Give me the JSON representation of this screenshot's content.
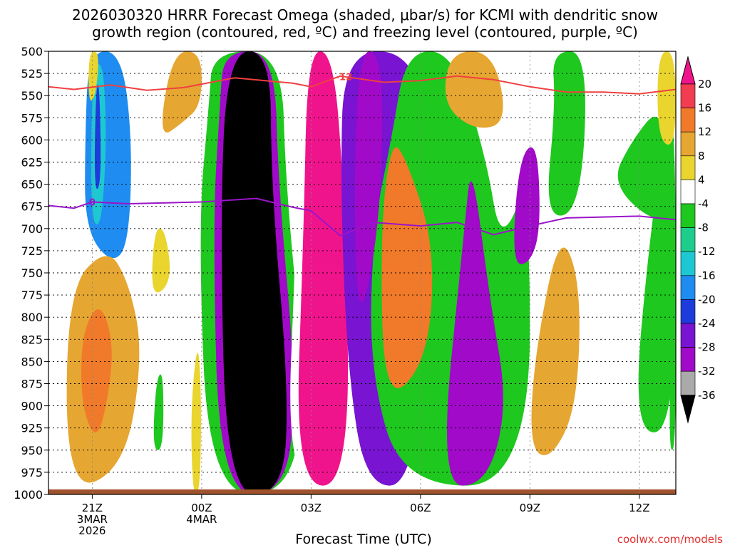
{
  "title_line1": "2026030320 HRRR Forecast Omega (shaded, μbar/s) for KCMI with dendritic snow",
  "title_line2": "growth region (contoured, red, ºC) and freezing level (contoured, purple, ºC)",
  "credit": "coolwx.com/models",
  "chart_data": {
    "type": "heatmap",
    "title": "2026030320 HRRR Forecast Omega (shaded, μbar/s) for KCMI with dendritic snow growth region (contoured, red, ºC) and freezing level (contoured, purple, ºC)",
    "xlabel": "Forecast Time (UTC)",
    "ylabel": "",
    "x_hours_range": [
      -0.2,
      17
    ],
    "y_pressure_range": [
      1000,
      500
    ],
    "grid": true,
    "x_ticks": [
      {
        "hour": 1,
        "lines": [
          "21Z",
          "3MAR",
          "2026"
        ]
      },
      {
        "hour": 4,
        "lines": [
          "00Z",
          "4MAR"
        ]
      },
      {
        "hour": 7,
        "lines": [
          "03Z"
        ]
      },
      {
        "hour": 10,
        "lines": [
          "06Z"
        ]
      },
      {
        "hour": 13,
        "lines": [
          "09Z"
        ]
      },
      {
        "hour": 16,
        "lines": [
          "12Z"
        ]
      }
    ],
    "y_ticks": [
      500,
      525,
      550,
      575,
      600,
      625,
      650,
      675,
      700,
      725,
      750,
      775,
      800,
      825,
      850,
      875,
      900,
      925,
      950,
      975,
      1000
    ],
    "colorbar": {
      "ticks": [
        20,
        16,
        12,
        8,
        4,
        -4,
        -8,
        -12,
        -16,
        -20,
        -24,
        -28,
        -32,
        -36
      ],
      "bands": [
        {
          "range": [
            16,
            20
          ],
          "color": "#f23c50"
        },
        {
          "range": [
            12,
            16
          ],
          "color": "#f07a2a"
        },
        {
          "range": [
            8,
            12
          ],
          "color": "#e6a632"
        },
        {
          "range": [
            4,
            8
          ],
          "color": "#ead42e"
        },
        {
          "range": [
            -4,
            4
          ],
          "color": "#ffffff"
        },
        {
          "range": [
            -8,
            -4
          ],
          "color": "#1ec81e"
        },
        {
          "range": [
            -12,
            -8
          ],
          "color": "#1dcd8c"
        },
        {
          "range": [
            -16,
            -12
          ],
          "color": "#1ec8d2"
        },
        {
          "range": [
            -20,
            -16
          ],
          "color": "#1e8cf0"
        },
        {
          "range": [
            -24,
            -20
          ],
          "color": "#1e3cdc"
        },
        {
          "range": [
            -28,
            -24
          ],
          "color": "#7814d2"
        },
        {
          "range": [
            -32,
            -28
          ],
          "color": "#a00ac8"
        },
        {
          "range": [
            -36,
            -32
          ],
          "color": "#aaaaaa"
        }
      ],
      "above_max_color": "#f0148c",
      "below_min_color": "#000000"
    },
    "omega_regions": [
      {
        "range": [
          -36,
          -4
        ],
        "polygon": [
          [
            0.8,
            700
          ],
          [
            0.8,
            600
          ],
          [
            0.9,
            500
          ],
          [
            1.8,
            500
          ],
          [
            2.1,
            600
          ],
          [
            2,
            720
          ],
          [
            1.5,
            740
          ]
        ]
      },
      {
        "range": [
          -20,
          -8
        ],
        "polygon": [
          [
            0.95,
            690
          ],
          [
            1,
            520
          ],
          [
            1.3,
            510
          ],
          [
            1.4,
            600
          ],
          [
            1.25,
            700
          ]
        ]
      },
      {
        "range": [
          -28,
          -20
        ],
        "polygon": [
          [
            1.05,
            660
          ],
          [
            1.1,
            540
          ],
          [
            1.2,
            535
          ],
          [
            1.25,
            650
          ]
        ]
      },
      {
        "range": [
          4,
          16
        ],
        "polygon": [
          [
            0.3,
            1000
          ],
          [
            0.3,
            770
          ],
          [
            1.4,
            720
          ],
          [
            2,
            760
          ],
          [
            2.4,
            840
          ],
          [
            1.9,
            970
          ]
        ]
      },
      {
        "range": [
          8,
          20
        ],
        "polygon": [
          [
            0.7,
            900
          ],
          [
            0.7,
            820
          ],
          [
            1.2,
            780
          ],
          [
            1.6,
            830
          ],
          [
            1.4,
            900
          ],
          [
            1.1,
            940
          ]
        ]
      },
      {
        "range": [
          4,
          8
        ],
        "polygon": [
          [
            0.9,
            560
          ],
          [
            0.9,
            500
          ],
          [
            1.2,
            500
          ],
          [
            1.1,
            550
          ]
        ]
      },
      {
        "range": [
          4,
          12
        ],
        "polygon": [
          [
            2.8,
            600
          ],
          [
            3.2,
            500
          ],
          [
            4,
            500
          ],
          [
            4,
            560
          ],
          [
            3.5,
            580
          ]
        ]
      },
      {
        "range": [
          4,
          8
        ],
        "polygon": [
          [
            2.6,
            780
          ],
          [
            2.7,
            700
          ],
          [
            3,
            700
          ],
          [
            3.2,
            760
          ]
        ]
      },
      {
        "range": [
          -12,
          -4
        ],
        "polygon": [
          [
            2.65,
            950
          ],
          [
            2.75,
            870
          ],
          [
            2.95,
            860
          ],
          [
            2.95,
            950
          ]
        ]
      },
      {
        "range": [
          4,
          8
        ],
        "polygon": [
          [
            3.75,
            1000
          ],
          [
            3.7,
            900
          ],
          [
            3.9,
            820
          ],
          [
            4,
            900
          ],
          [
            3.95,
            1000
          ]
        ]
      },
      {
        "range": [
          -12,
          -4
        ],
        "polygon": [
          [
            4.2,
            1000
          ],
          [
            3.9,
            700
          ],
          [
            4.2,
            560
          ],
          [
            4.3,
            500
          ],
          [
            6.2,
            500
          ],
          [
            6.3,
            650
          ],
          [
            6.8,
            860
          ],
          [
            6.5,
            1000
          ]
        ]
      },
      {
        "range": [
          -36,
          -24
        ],
        "polygon": [
          [
            4.5,
            1000
          ],
          [
            4.3,
            700
          ],
          [
            4.5,
            560
          ],
          [
            4.6,
            500
          ],
          [
            6,
            500
          ],
          [
            6.1,
            650
          ],
          [
            6.6,
            880
          ],
          [
            6.3,
            1000
          ]
        ]
      },
      {
        "range": [
          -40,
          -36
        ],
        "polygon": [
          [
            4.7,
            1000
          ],
          [
            4.5,
            700
          ],
          [
            4.7,
            500
          ],
          [
            5.9,
            500
          ],
          [
            5.9,
            650
          ],
          [
            6.4,
            890
          ],
          [
            6.2,
            1000
          ]
        ]
      },
      {
        "range": [
          -8,
          4
        ],
        "polygon": [
          [
            6.3,
            1000
          ],
          [
            6.6,
            700
          ],
          [
            6.7,
            500
          ],
          [
            7.9,
            500
          ],
          [
            8.1,
            650
          ],
          [
            8.3,
            1000
          ]
        ]
      },
      {
        "range": [
          20,
          24
        ],
        "polygon": [
          [
            6.55,
            990
          ],
          [
            6.8,
            700
          ],
          [
            6.9,
            500
          ],
          [
            7.6,
            500
          ],
          [
            7.9,
            650
          ],
          [
            8.1,
            990
          ]
        ]
      },
      {
        "range": [
          -40,
          -12
        ],
        "polygon": [
          [
            8,
            860
          ],
          [
            7.8,
            650
          ],
          [
            7.9,
            500
          ],
          [
            9.8,
            500
          ],
          [
            10.4,
            620
          ],
          [
            10.3,
            760
          ],
          [
            9.8,
            990
          ],
          [
            8.5,
            990
          ]
        ]
      },
      {
        "range": [
          -12,
          -4
        ],
        "polygon": [
          [
            8.6,
            860
          ],
          [
            8.7,
            700
          ],
          [
            9.2,
            600
          ],
          [
            9.6,
            500
          ],
          [
            10.9,
            500
          ],
          [
            11.8,
            620
          ],
          [
            12.2,
            720
          ],
          [
            13,
            640
          ],
          [
            13,
            990
          ],
          [
            9.5,
            990
          ]
        ]
      },
      {
        "range": [
          -40,
          -20
        ],
        "polygon": [
          [
            8.2,
            830
          ],
          [
            8.2,
            500
          ],
          [
            9,
            500
          ],
          [
            8.9,
            700
          ]
        ]
      },
      {
        "range": [
          4,
          20
        ],
        "polygon": [
          [
            9,
            900
          ],
          [
            8.9,
            700
          ],
          [
            9.2,
            600
          ],
          [
            9.6,
            620
          ],
          [
            10.4,
            720
          ],
          [
            10.2,
            850
          ]
        ]
      },
      {
        "range": [
          -40,
          -24
        ],
        "polygon": [
          [
            10.5,
            990
          ],
          [
            11.2,
            700
          ],
          [
            11.4,
            620
          ],
          [
            11.9,
            780
          ],
          [
            12.4,
            900
          ],
          [
            11.8,
            990
          ]
        ]
      },
      {
        "range": [
          -40,
          -24
        ],
        "polygon": [
          [
            12.5,
            740
          ],
          [
            12.7,
            620
          ],
          [
            13.2,
            600
          ],
          [
            13.3,
            700
          ],
          [
            13,
            740
          ]
        ]
      },
      {
        "range": [
          4,
          16
        ],
        "polygon": [
          [
            10.6,
            560
          ],
          [
            10.8,
            500
          ],
          [
            12,
            500
          ],
          [
            12.4,
            580
          ],
          [
            11.5,
            590
          ]
        ]
      },
      {
        "range": [
          4,
          16
        ],
        "polygon": [
          [
            13,
            950
          ],
          [
            13.1,
            850
          ],
          [
            13.8,
            700
          ],
          [
            14.4,
            760
          ],
          [
            14.3,
            900
          ],
          [
            13.6,
            960
          ]
        ]
      },
      {
        "range": [
          -12,
          -4
        ],
        "polygon": [
          [
            13.4,
            690
          ],
          [
            13.7,
            560
          ],
          [
            13.6,
            500
          ],
          [
            14.6,
            500
          ],
          [
            14.4,
            680
          ]
        ]
      },
      {
        "range": [
          -12,
          -4
        ],
        "polygon": [
          [
            15.8,
            930
          ],
          [
            16.3,
            700
          ],
          [
            16.8,
            570
          ],
          [
            17,
            600
          ],
          [
            17,
            930
          ]
        ]
      },
      {
        "range": [
          -8,
          -4
        ],
        "polygon": [
          [
            15.2,
            650
          ],
          [
            15.8,
            600
          ],
          [
            16.6,
            560
          ],
          [
            16.9,
            650
          ],
          [
            16.6,
            700
          ]
        ]
      },
      {
        "range": [
          4,
          8
        ],
        "polygon": [
          [
            16.5,
            600
          ],
          [
            16.5,
            500
          ],
          [
            17,
            500
          ],
          [
            17,
            610
          ]
        ]
      },
      {
        "range": [
          -8,
          -4
        ],
        "polygon": [
          [
            16.8,
            950
          ],
          [
            16.9,
            780
          ],
          [
            17,
            760
          ],
          [
            17,
            950
          ]
        ]
      }
    ],
    "series": [
      {
        "name": "-12",
        "color": "#f04040",
        "label_at_hour": 7.9,
        "points": [
          [
            -0.2,
            540
          ],
          [
            0.5,
            543
          ],
          [
            1.5,
            538
          ],
          [
            2.5,
            544
          ],
          [
            3.5,
            541
          ],
          [
            4.9,
            530
          ],
          [
            6.5,
            536
          ],
          [
            7,
            540
          ],
          [
            7.8,
            528
          ],
          [
            9,
            535
          ],
          [
            10,
            533
          ],
          [
            11,
            528
          ],
          [
            12,
            532
          ],
          [
            13,
            540
          ],
          [
            14,
            546
          ],
          [
            15,
            546
          ],
          [
            16,
            548
          ],
          [
            17,
            543
          ]
        ]
      },
      {
        "name": "0",
        "color": "#9a14c8",
        "label_at_hour": 1,
        "points": [
          [
            -0.2,
            674
          ],
          [
            0.5,
            677
          ],
          [
            1,
            670
          ],
          [
            2,
            672
          ],
          [
            3,
            671
          ],
          [
            4,
            670
          ],
          [
            5.5,
            666
          ],
          [
            6.5,
            676
          ],
          [
            7,
            680
          ],
          [
            7.8,
            708
          ],
          [
            8.7,
            693
          ],
          [
            10,
            697
          ],
          [
            11,
            693
          ],
          [
            12,
            707
          ],
          [
            13,
            697
          ],
          [
            14,
            688
          ],
          [
            15,
            687
          ],
          [
            16,
            686
          ],
          [
            17,
            690
          ]
        ]
      }
    ]
  }
}
